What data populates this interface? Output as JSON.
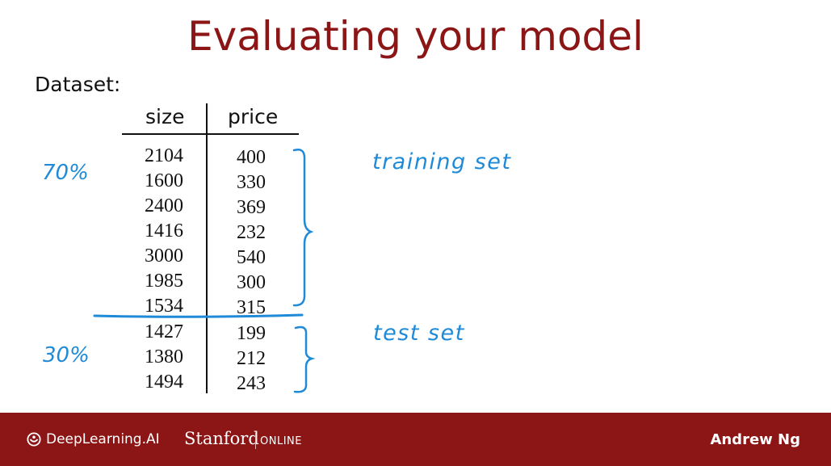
{
  "slide": {
    "title": "Evaluating your model",
    "dataset_label": "Dataset:",
    "table": {
      "headers": [
        "size",
        "price"
      ],
      "rows": [
        [
          "2104",
          "400"
        ],
        [
          "1600",
          "330"
        ],
        [
          "2400",
          "369"
        ],
        [
          "1416",
          "232"
        ],
        [
          "3000",
          "540"
        ],
        [
          "1985",
          "300"
        ],
        [
          "1534",
          "315"
        ],
        [
          "1427",
          "199"
        ],
        [
          "1380",
          "212"
        ],
        [
          "1494",
          "243"
        ]
      ]
    },
    "annotations": {
      "train_percent": "70%",
      "test_percent": "30%",
      "train_label": "training set",
      "test_label": "test set"
    },
    "annotation_color": "#1e8ad8",
    "title_color": "#8c1515"
  },
  "footer": {
    "brand": "DeepLearning.AI",
    "partner": "Stanford",
    "partner_suffix": "ONLINE",
    "author": "Andrew Ng",
    "background": "#8c1515"
  }
}
